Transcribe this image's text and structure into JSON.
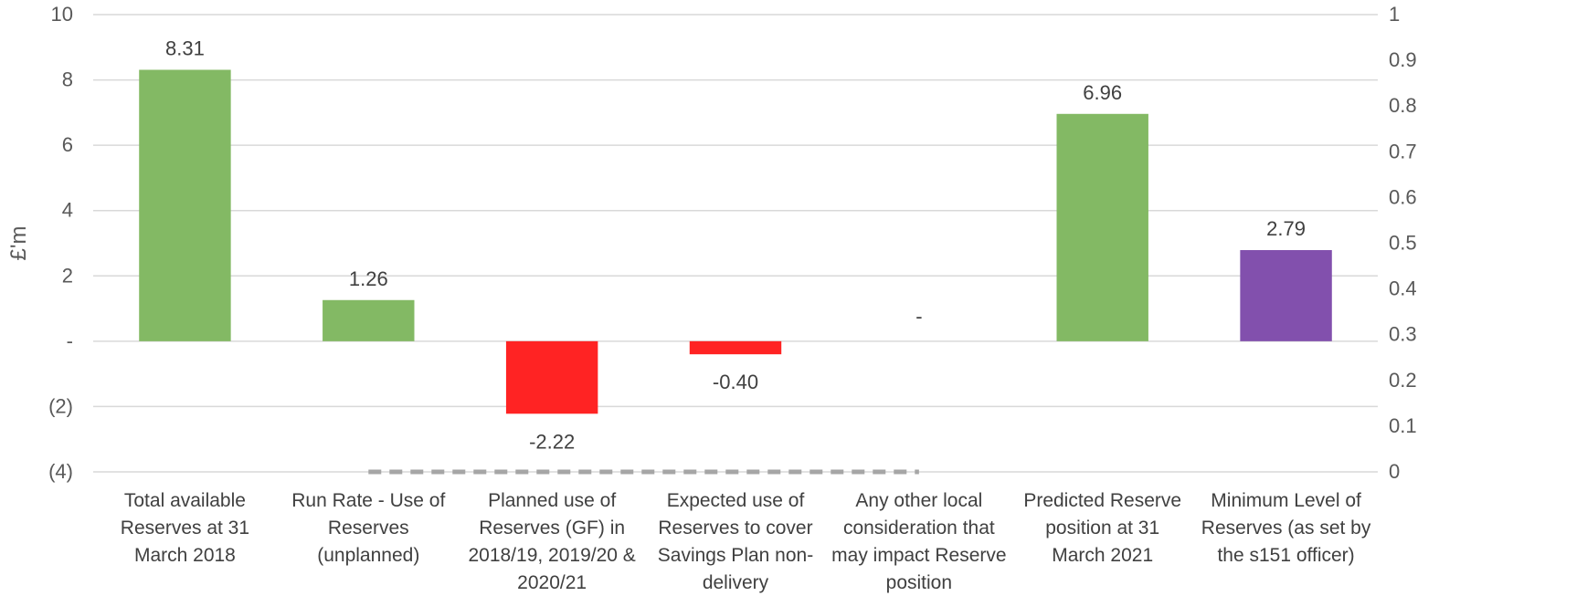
{
  "chart_data": {
    "type": "bar",
    "ylabel": "£'m",
    "ylim": [
      -4,
      10
    ],
    "y_ticks": [
      {
        "value": 10,
        "label": "10"
      },
      {
        "value": 8,
        "label": "8"
      },
      {
        "value": 6,
        "label": "6"
      },
      {
        "value": 4,
        "label": "4"
      },
      {
        "value": 2,
        "label": "2"
      },
      {
        "value": 0,
        "label": "-"
      },
      {
        "value": -2,
        "label": "(2)"
      },
      {
        "value": -4,
        "label": "(4)"
      }
    ],
    "y2lim": [
      0,
      1
    ],
    "y2_ticks": [
      {
        "value": 1,
        "label": "1"
      },
      {
        "value": 0.9,
        "label": "0.9"
      },
      {
        "value": 0.8,
        "label": "0.8"
      },
      {
        "value": 0.7,
        "label": "0.7"
      },
      {
        "value": 0.6,
        "label": "0.6"
      },
      {
        "value": 0.5,
        "label": "0.5"
      },
      {
        "value": 0.4,
        "label": "0.4"
      },
      {
        "value": 0.3,
        "label": "0.3"
      },
      {
        "value": 0.2,
        "label": "0.2"
      },
      {
        "value": 0.1,
        "label": "0.1"
      },
      {
        "value": 0,
        "label": "0"
      }
    ],
    "grid": true,
    "bars": [
      {
        "category": [
          "Total available",
          "Reserves at 31",
          "March 2018"
        ],
        "value": 8.31,
        "label": "8.31",
        "color": "#83b964"
      },
      {
        "category": [
          "Run Rate - Use of",
          "Reserves",
          "(unplanned)"
        ],
        "value": 1.26,
        "label": "1.26",
        "color": "#83b964"
      },
      {
        "category": [
          "Planned use of",
          "Reserves (GF) in",
          "2018/19, 2019/20 &",
          "2020/21"
        ],
        "value": -2.22,
        "label": "-2.22",
        "color": "#ff2323"
      },
      {
        "category": [
          "Expected use of",
          "Reserves to cover",
          "Savings Plan non-",
          "delivery"
        ],
        "value": -0.4,
        "label": "-0.40",
        "color": "#ff2323"
      },
      {
        "category": [
          "Any other local",
          "consideration that",
          "may impact Reserve",
          "position"
        ],
        "value": 0,
        "label": "-",
        "color": "#83b964"
      },
      {
        "category": [
          "Predicted Reserve",
          "position at 31",
          "March 2021"
        ],
        "value": 6.96,
        "label": "6.96",
        "color": "#83b964"
      },
      {
        "category": [
          "Minimum Level of",
          "Reserves (as set by",
          "the s151 officer)"
        ],
        "value": 2.79,
        "label": "2.79",
        "color": "#8250ad"
      }
    ],
    "secondary_line": {
      "style": "dashed",
      "color": "#a6a6a6",
      "from_category": 1,
      "to_category": 4,
      "value": 0
    }
  }
}
